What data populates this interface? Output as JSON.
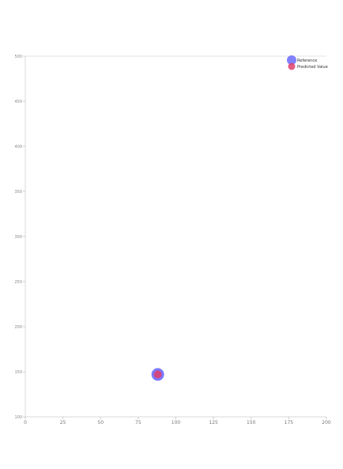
{
  "chart_data": {
    "type": "scatter",
    "title": "",
    "xlabel": "",
    "ylabel": "",
    "xlim": [
      0,
      200
    ],
    "ylim": [
      100,
      500
    ],
    "x_ticks": [
      0,
      25,
      50,
      75,
      100,
      125,
      150,
      175,
      200
    ],
    "y_ticks": [
      100,
      150,
      200,
      250,
      300,
      350,
      400,
      450,
      500
    ],
    "x_tick_labels": [
      "0",
      "25",
      "50",
      "75",
      "100",
      "125",
      "150",
      "175",
      "200"
    ],
    "y_tick_labels": [
      "100",
      "150",
      "200",
      "250",
      "300",
      "350",
      "400",
      "450",
      "500"
    ],
    "grid": false,
    "legend": {
      "position": "top-right"
    },
    "series": [
      {
        "name": "Reference",
        "color": "#6b6bff",
        "points": [
          {
            "x": 88,
            "y": 147
          }
        ]
      },
      {
        "name": "Predicted Value",
        "color": "#e0406b",
        "points": [
          {
            "x": 88,
            "y": 147
          }
        ]
      }
    ]
  }
}
